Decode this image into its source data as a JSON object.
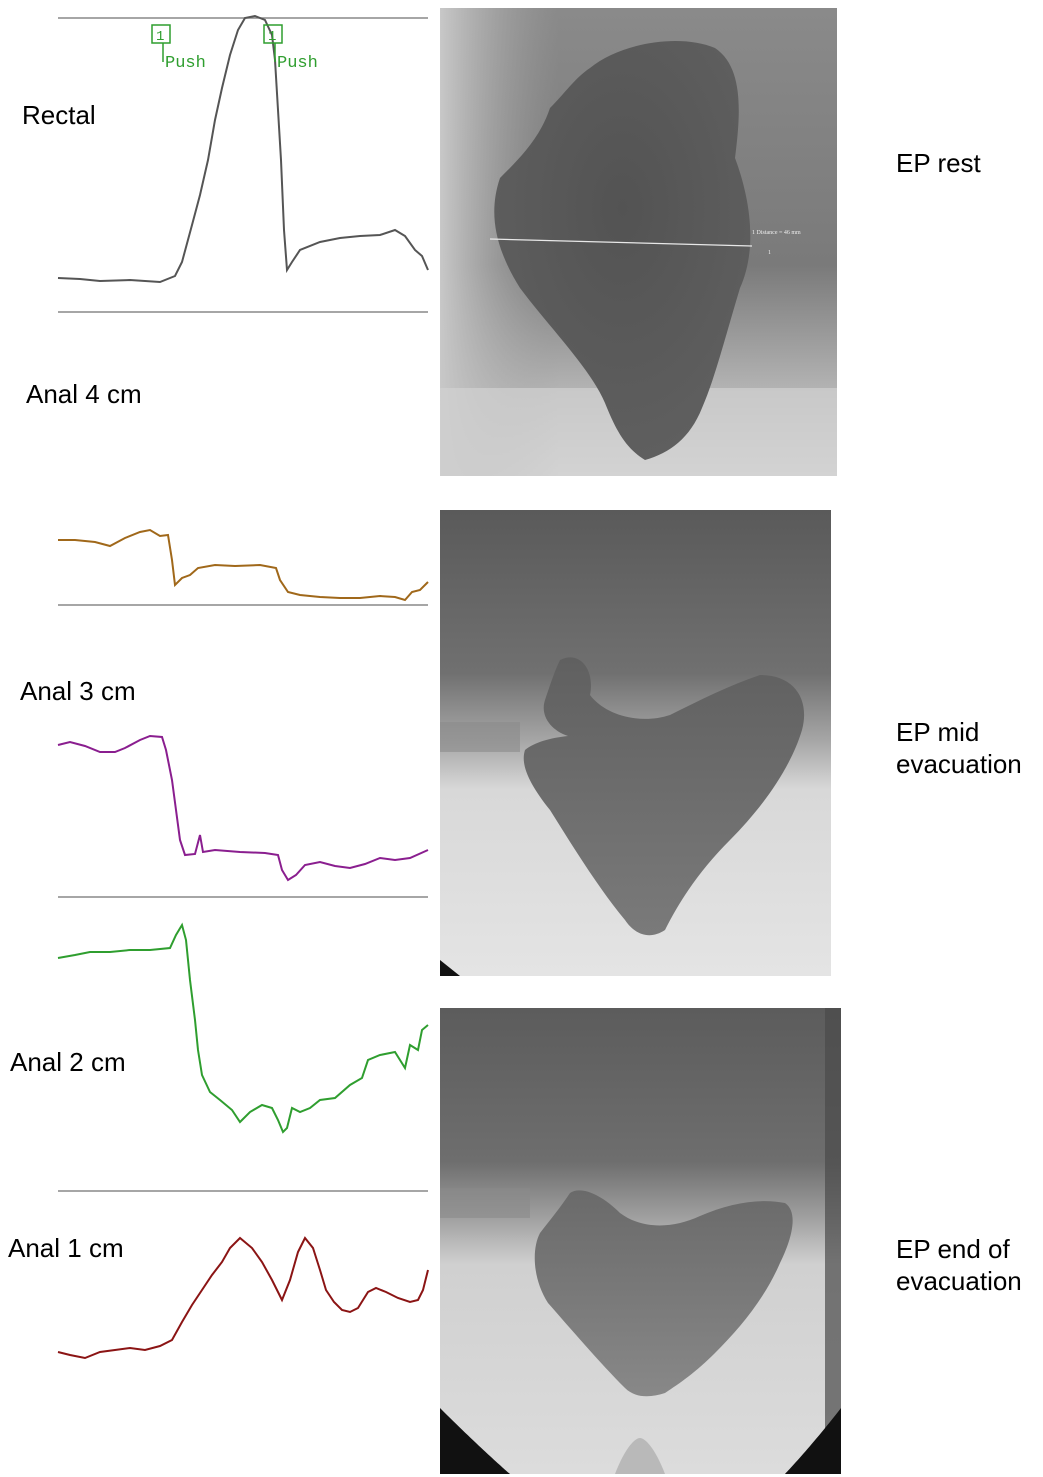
{
  "channels": [
    {
      "key": "rectal",
      "label": "Rectal",
      "color": "#555555"
    },
    {
      "key": "anal4",
      "label": "Anal 4 cm",
      "color": "#a0681a"
    },
    {
      "key": "anal3",
      "label": "Anal 3 cm",
      "color": "#8a1e8f"
    },
    {
      "key": "anal2",
      "label": "Anal 2 cm",
      "color": "#2f9e2f"
    },
    {
      "key": "anal1",
      "label": "Anal 1 cm",
      "color": "#8b1414"
    }
  ],
  "markers": [
    {
      "number": "1",
      "text": "Push",
      "color": "#2f9e2f"
    },
    {
      "number": "1",
      "text": "Push",
      "color": "#2f9e2f"
    }
  ],
  "images": [
    {
      "label_line1": "EP rest",
      "label_line2": "",
      "measure_text": "1 Distance = 46 mm",
      "measure_num": "1"
    },
    {
      "label_line1": "EP mid",
      "label_line2": "evacuation"
    },
    {
      "label_line1": "EP end of",
      "label_line2": "evacuation"
    }
  ]
}
